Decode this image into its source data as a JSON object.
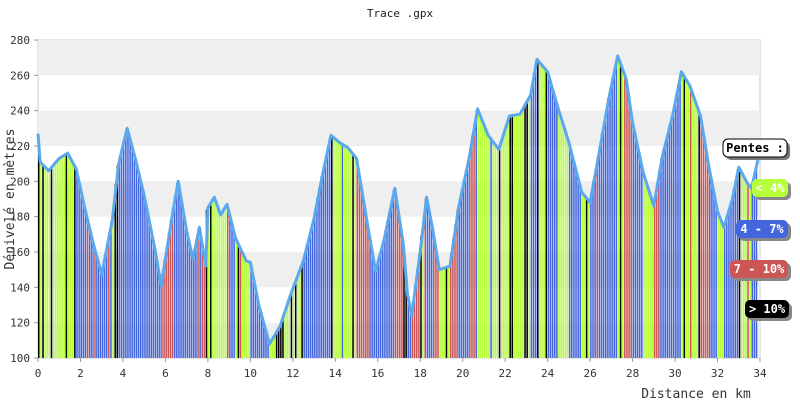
{
  "chart_data": {
    "type": "area",
    "title": "Trace .gpx",
    "xlabel": "Distance en km",
    "ylabel": "Dénivelé en mètres",
    "xlim": [
      0,
      34
    ],
    "ylim": [
      100,
      280
    ],
    "x_ticks": [
      0,
      2,
      4,
      6,
      8,
      10,
      12,
      14,
      16,
      18,
      20,
      22,
      24,
      26,
      28,
      30,
      32,
      34
    ],
    "y_ticks": [
      100,
      120,
      140,
      160,
      180,
      200,
      220,
      240,
      260,
      280
    ],
    "grid": "horizontal bands",
    "profile": [
      {
        "x": 0.0,
        "y": 227
      },
      {
        "x": 0.1,
        "y": 211
      },
      {
        "x": 0.5,
        "y": 206
      },
      {
        "x": 1.0,
        "y": 213
      },
      {
        "x": 1.4,
        "y": 216
      },
      {
        "x": 1.8,
        "y": 207
      },
      {
        "x": 2.2,
        "y": 185
      },
      {
        "x": 2.6,
        "y": 165
      },
      {
        "x": 3.0,
        "y": 147
      },
      {
        "x": 3.5,
        "y": 178
      },
      {
        "x": 3.8,
        "y": 210
      },
      {
        "x": 4.2,
        "y": 230
      },
      {
        "x": 4.6,
        "y": 212
      },
      {
        "x": 5.0,
        "y": 192
      },
      {
        "x": 5.5,
        "y": 162
      },
      {
        "x": 5.8,
        "y": 141
      },
      {
        "x": 6.3,
        "y": 179
      },
      {
        "x": 6.6,
        "y": 200
      },
      {
        "x": 7.0,
        "y": 172
      },
      {
        "x": 7.3,
        "y": 156
      },
      {
        "x": 7.6,
        "y": 174
      },
      {
        "x": 7.9,
        "y": 152
      },
      {
        "x": 8.0,
        "y": 185
      },
      {
        "x": 8.3,
        "y": 191
      },
      {
        "x": 8.6,
        "y": 181
      },
      {
        "x": 8.9,
        "y": 187
      },
      {
        "x": 9.3,
        "y": 168
      },
      {
        "x": 9.8,
        "y": 155
      },
      {
        "x": 10.0,
        "y": 154
      },
      {
        "x": 10.4,
        "y": 130
      },
      {
        "x": 10.9,
        "y": 108
      },
      {
        "x": 11.4,
        "y": 118
      },
      {
        "x": 11.9,
        "y": 136
      },
      {
        "x": 12.5,
        "y": 155
      },
      {
        "x": 13.0,
        "y": 179
      },
      {
        "x": 13.4,
        "y": 204
      },
      {
        "x": 13.8,
        "y": 226
      },
      {
        "x": 14.2,
        "y": 222
      },
      {
        "x": 14.6,
        "y": 219
      },
      {
        "x": 15.0,
        "y": 213
      },
      {
        "x": 15.5,
        "y": 177
      },
      {
        "x": 15.9,
        "y": 149
      },
      {
        "x": 16.3,
        "y": 167
      },
      {
        "x": 16.8,
        "y": 196
      },
      {
        "x": 17.2,
        "y": 165
      },
      {
        "x": 17.4,
        "y": 136
      },
      {
        "x": 17.6,
        "y": 124
      },
      {
        "x": 18.0,
        "y": 160
      },
      {
        "x": 18.3,
        "y": 191
      },
      {
        "x": 18.6,
        "y": 172
      },
      {
        "x": 18.9,
        "y": 150
      },
      {
        "x": 19.4,
        "y": 152
      },
      {
        "x": 19.8,
        "y": 185
      },
      {
        "x": 20.3,
        "y": 213
      },
      {
        "x": 20.7,
        "y": 241
      },
      {
        "x": 21.2,
        "y": 226
      },
      {
        "x": 21.7,
        "y": 218
      },
      {
        "x": 22.2,
        "y": 237
      },
      {
        "x": 22.7,
        "y": 238
      },
      {
        "x": 23.2,
        "y": 249
      },
      {
        "x": 23.5,
        "y": 269
      },
      {
        "x": 24.0,
        "y": 262
      },
      {
        "x": 24.5,
        "y": 241
      },
      {
        "x": 25.0,
        "y": 222
      },
      {
        "x": 25.6,
        "y": 194
      },
      {
        "x": 26.0,
        "y": 188
      },
      {
        "x": 26.5,
        "y": 221
      },
      {
        "x": 26.9,
        "y": 248
      },
      {
        "x": 27.3,
        "y": 271
      },
      {
        "x": 27.7,
        "y": 258
      },
      {
        "x": 28.0,
        "y": 233
      },
      {
        "x": 28.5,
        "y": 205
      },
      {
        "x": 29.0,
        "y": 186
      },
      {
        "x": 29.4,
        "y": 214
      },
      {
        "x": 29.9,
        "y": 238
      },
      {
        "x": 30.3,
        "y": 262
      },
      {
        "x": 30.7,
        "y": 254
      },
      {
        "x": 31.2,
        "y": 237
      },
      {
        "x": 31.6,
        "y": 208
      },
      {
        "x": 32.0,
        "y": 183
      },
      {
        "x": 32.3,
        "y": 174
      },
      {
        "x": 32.7,
        "y": 190
      },
      {
        "x": 33.0,
        "y": 208
      },
      {
        "x": 33.4,
        "y": 199
      },
      {
        "x": 33.6,
        "y": 196
      },
      {
        "x": 33.9,
        "y": 212
      }
    ],
    "slope_legend": {
      "title": "Pentes :",
      "classes": [
        {
          "label": "< 4%",
          "color": "#b5ff3b",
          "text_color": "#ffffff"
        },
        {
          "label": "4 - 7%",
          "color": "#4466dd",
          "text_color": "#ffffff"
        },
        {
          "label": "7 - 10%",
          "color": "#cc5555",
          "text_color": "#ffffff"
        },
        {
          "label": "> 10%",
          "color": "#000000",
          "text_color": "#ffffff"
        }
      ]
    },
    "colors": {
      "outline": "#5aa8ee",
      "band": "#efefef",
      "axis_text": "#333333"
    }
  }
}
